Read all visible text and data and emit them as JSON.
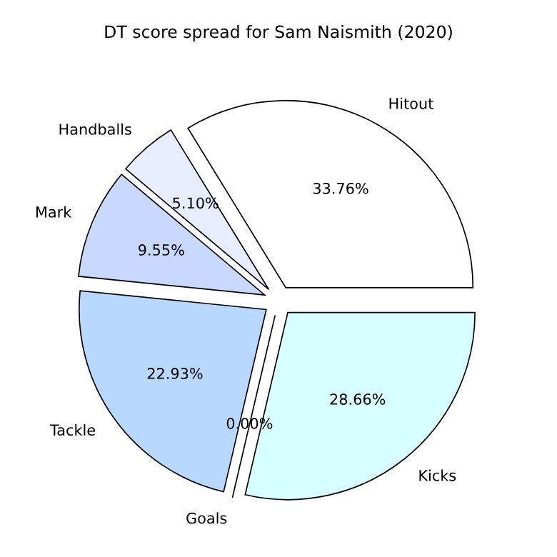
{
  "chart_data": {
    "type": "pie",
    "title": "DT score spread for Sam Naismith (2020)",
    "categories": [
      "Hitout",
      "Handballs",
      "Mark",
      "Tackle",
      "Goals",
      "Kicks"
    ],
    "values": [
      33.76,
      5.1,
      9.55,
      22.93,
      0.0,
      28.66
    ],
    "value_labels": [
      "33.76%",
      "5.10%",
      "9.55%",
      "22.93%",
      "0.00%",
      "28.66%"
    ],
    "colors": [
      "#ffffff",
      "#e8eeff",
      "#c8d8ff",
      "#b8d8ff",
      "#c0e0ff",
      "#d8ffff"
    ]
  }
}
